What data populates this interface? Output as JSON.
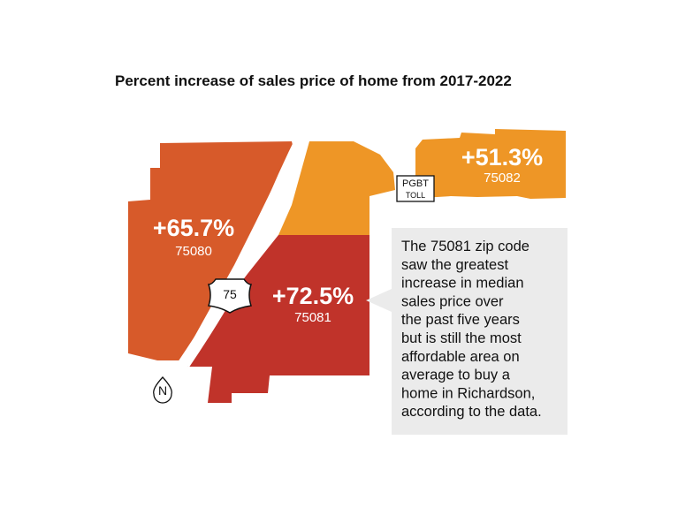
{
  "title": "Percent increase of sales price of home from 2017-2022",
  "regions": [
    {
      "change": "+65.7%",
      "zip": "75080"
    },
    {
      "change": "+72.5%",
      "zip": "75081"
    },
    {
      "change": "+51.3%",
      "zip": "75082"
    }
  ],
  "highway": "75",
  "toll": {
    "name": "PGBT",
    "kind": "TOLL"
  },
  "north": "N",
  "note": [
    "The 75081 zip code",
    "saw the greatest",
    "increase in median",
    "sales price over",
    "the past five years",
    "but is still the most",
    "affordable area on",
    "average to buy a",
    "home in Richardson,",
    "according to the data."
  ]
}
